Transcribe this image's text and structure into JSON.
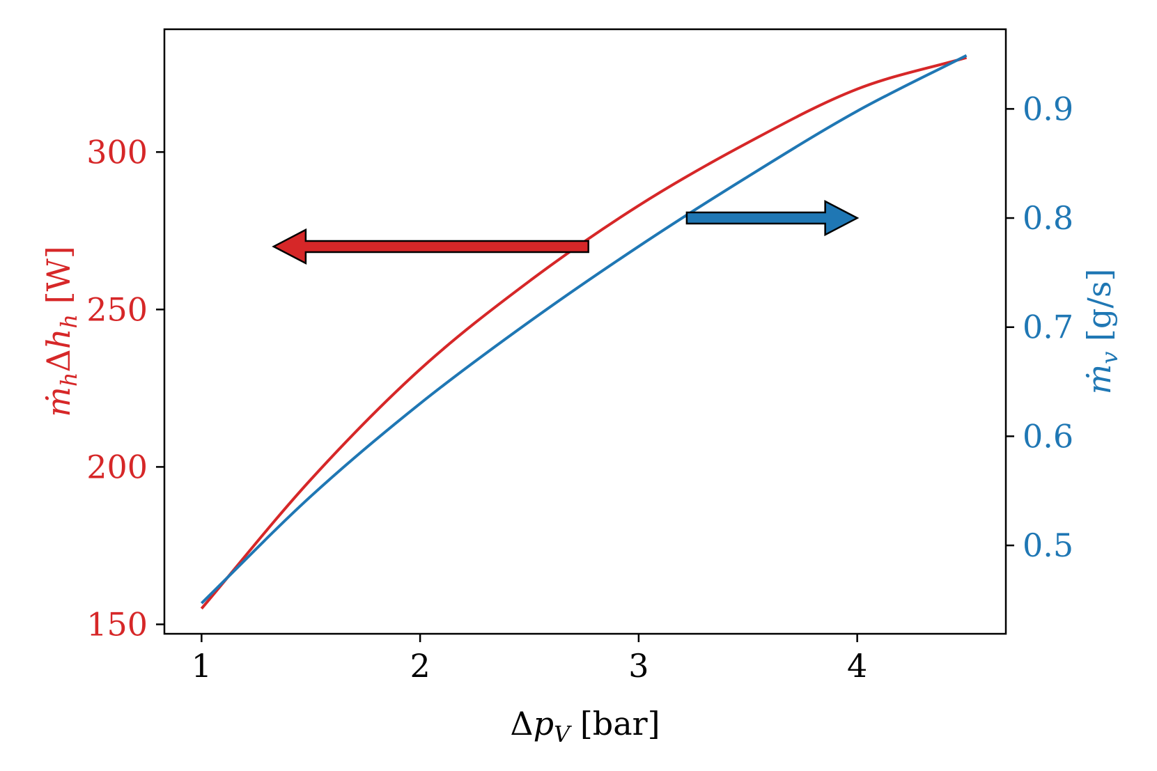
{
  "chart_data": {
    "type": "line",
    "xlabel": "Δp_V [bar]",
    "ylabel_left": "ṁ_h Δh_h [W]",
    "ylabel_right": "ṁ_v [g/s]",
    "xlim": [
      0.83,
      4.68
    ],
    "ylim_left": [
      147,
      339
    ],
    "ylim_right": [
      0.419,
      0.973
    ],
    "x_ticks": [
      1,
      2,
      3,
      4
    ],
    "y_ticks_left": [
      150,
      200,
      250,
      300
    ],
    "y_ticks_right": [
      0.5,
      0.6,
      0.7,
      0.8,
      0.9
    ],
    "grid": false,
    "legend": "none",
    "series": [
      {
        "axis": "left",
        "color": "#d62728",
        "x": [
          1.0,
          1.5,
          2.0,
          2.5,
          3.0,
          3.5,
          4.0,
          4.5
        ],
        "y": [
          155,
          196,
          231,
          259,
          283,
          303,
          320,
          330
        ]
      },
      {
        "axis": "right",
        "color": "#1f77b4",
        "x": [
          1.0,
          1.5,
          2.0,
          2.5,
          3.0,
          3.5,
          4.0,
          4.5
        ],
        "y": [
          0.447,
          0.545,
          0.63,
          0.705,
          0.774,
          0.838,
          0.898,
          0.949
        ]
      }
    ],
    "annotations": [
      {
        "kind": "arrow",
        "direction": "left",
        "axis": "left",
        "color": "#d62728",
        "x_start": 2.77,
        "x_end": 1.33,
        "y": 270
      },
      {
        "kind": "arrow",
        "direction": "right",
        "axis": "right",
        "color": "#1f77b4",
        "x_start": 3.22,
        "x_end": 4.0,
        "y": 0.8
      }
    ]
  }
}
